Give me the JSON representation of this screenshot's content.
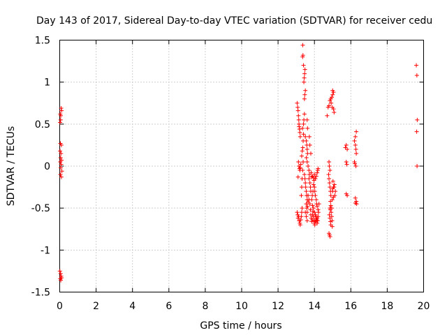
{
  "chart_data": {
    "type": "scatter",
    "title": "Day 143 of 2017, Sidereal Day-to-day VTEC variation (SDTVAR) for receiver cedu",
    "xlabel": "GPS time / hours",
    "ylabel": "SDTVAR / TECUs",
    "xlim": [
      0,
      20
    ],
    "ylim": [
      -1.5,
      1.5
    ],
    "xticks": [
      0,
      2,
      4,
      6,
      8,
      10,
      12,
      14,
      16,
      18,
      20
    ],
    "yticks": [
      -1.5,
      -1,
      -0.5,
      0,
      0.5,
      1,
      1.5
    ],
    "xtick_labels": [
      "0",
      "2",
      "4",
      "6",
      "8",
      "10",
      "12",
      "14",
      "16",
      "18",
      "20"
    ],
    "ytick_labels": [
      "-1.5",
      "-1",
      "-0.5",
      "0",
      "0.5",
      "1",
      "1.5"
    ],
    "grid": true,
    "marker": "+",
    "marker_color": "#ff0000",
    "series": [
      {
        "name": "SDTVAR",
        "points": [
          [
            0.03,
            0.62
          ],
          [
            0.05,
            0.55
          ],
          [
            0.02,
            0.52
          ],
          [
            0.08,
            0.69
          ],
          [
            0.1,
            0.66
          ],
          [
            0.06,
            0.6
          ],
          [
            0.04,
            0.27
          ],
          [
            0.09,
            0.25
          ],
          [
            0.02,
            0.18
          ],
          [
            0.07,
            0.15
          ],
          [
            0.05,
            0.1
          ],
          [
            0.03,
            0.05
          ],
          [
            0.1,
            0.07
          ],
          [
            0.08,
            0.02
          ],
          [
            0.06,
            -0.02
          ],
          [
            0.12,
            -0.06
          ],
          [
            0.04,
            -0.1
          ],
          [
            0.09,
            -0.13
          ],
          [
            0.01,
            -1.25
          ],
          [
            0.05,
            -1.28
          ],
          [
            0.08,
            -1.31
          ],
          [
            0.03,
            -1.34
          ],
          [
            0.06,
            -1.36
          ],
          [
            0.1,
            -1.33
          ],
          [
            13.05,
            0.75
          ],
          [
            13.08,
            0.7
          ],
          [
            13.1,
            0.66
          ],
          [
            13.12,
            0.6
          ],
          [
            13.14,
            0.55
          ],
          [
            13.15,
            0.5
          ],
          [
            13.16,
            0.47
          ],
          [
            13.18,
            0.44
          ],
          [
            13.2,
            0.4
          ],
          [
            13.22,
            0.35
          ],
          [
            13.12,
            0.05
          ],
          [
            13.15,
            0.0
          ],
          [
            13.18,
            -0.03
          ],
          [
            13.2,
            -0.05
          ],
          [
            13.22,
            -0.02
          ],
          [
            13.25,
            0.02
          ],
          [
            13.1,
            -0.13
          ],
          [
            13.05,
            -0.55
          ],
          [
            13.08,
            -0.58
          ],
          [
            13.1,
            -0.62
          ],
          [
            13.13,
            -0.6
          ],
          [
            13.16,
            -0.65
          ],
          [
            13.2,
            -0.68
          ],
          [
            13.22,
            -0.7
          ],
          [
            13.25,
            -0.64
          ],
          [
            13.28,
            -0.6
          ],
          [
            13.3,
            -0.55
          ],
          [
            13.32,
            -0.5
          ],
          [
            13.28,
            -0.35
          ],
          [
            13.3,
            -0.25
          ],
          [
            13.32,
            -0.15
          ],
          [
            13.35,
            -0.05
          ],
          [
            13.38,
            0.05
          ],
          [
            13.3,
            0.12
          ],
          [
            13.33,
            0.18
          ],
          [
            13.36,
            0.22
          ],
          [
            13.38,
            0.3
          ],
          [
            13.4,
            0.38
          ],
          [
            13.35,
            0.45
          ],
          [
            13.4,
            0.5
          ],
          [
            13.42,
            0.55
          ],
          [
            13.45,
            0.62
          ],
          [
            13.45,
            0.8
          ],
          [
            13.47,
            0.85
          ],
          [
            13.5,
            0.9
          ],
          [
            13.42,
            1.0
          ],
          [
            13.44,
            1.05
          ],
          [
            13.46,
            1.1
          ],
          [
            13.48,
            1.15
          ],
          [
            13.4,
            1.2
          ],
          [
            13.35,
            1.3
          ],
          [
            13.37,
            1.32
          ],
          [
            13.36,
            1.44
          ],
          [
            13.45,
            -0.1
          ],
          [
            13.48,
            -0.15
          ],
          [
            13.5,
            -0.2
          ],
          [
            13.52,
            -0.25
          ],
          [
            13.55,
            -0.3
          ],
          [
            13.57,
            -0.35
          ],
          [
            13.6,
            -0.4
          ],
          [
            13.55,
            -0.45
          ],
          [
            13.58,
            -0.5
          ],
          [
            13.6,
            -0.55
          ],
          [
            13.62,
            -0.48
          ],
          [
            13.65,
            -0.43
          ],
          [
            13.5,
            -0.55
          ],
          [
            13.55,
            -0.6
          ],
          [
            13.6,
            -0.65
          ],
          [
            13.5,
            0.35
          ],
          [
            13.55,
            0.3
          ],
          [
            13.58,
            0.25
          ],
          [
            13.6,
            0.2
          ],
          [
            13.62,
            0.15
          ],
          [
            13.56,
            0.1
          ],
          [
            13.6,
            0.05
          ],
          [
            13.65,
            0.0
          ],
          [
            13.7,
            -0.05
          ],
          [
            13.72,
            -0.1
          ],
          [
            13.7,
            -0.15
          ],
          [
            13.75,
            -0.2
          ],
          [
            13.78,
            -0.25
          ],
          [
            13.8,
            -0.3
          ],
          [
            13.65,
            -0.35
          ],
          [
            13.7,
            -0.4
          ],
          [
            13.75,
            -0.45
          ],
          [
            13.78,
            -0.52
          ],
          [
            13.8,
            -0.58
          ],
          [
            13.83,
            -0.62
          ],
          [
            13.85,
            -0.66
          ],
          [
            13.88,
            -0.64
          ],
          [
            13.9,
            -0.58
          ],
          [
            13.92,
            -0.54
          ],
          [
            13.95,
            -0.6
          ],
          [
            13.98,
            -0.65
          ],
          [
            14.0,
            -0.68
          ],
          [
            14.02,
            -0.7
          ],
          [
            14.05,
            -0.66
          ],
          [
            14.08,
            -0.62
          ],
          [
            14.1,
            -0.6
          ],
          [
            14.12,
            -0.64
          ],
          [
            14.15,
            -0.68
          ],
          [
            14.18,
            -0.65
          ],
          [
            14.2,
            -0.6
          ],
          [
            13.6,
            0.55
          ],
          [
            13.62,
            0.45
          ],
          [
            13.72,
            0.35
          ],
          [
            13.75,
            0.25
          ],
          [
            13.8,
            0.15
          ],
          [
            13.82,
            -0.08
          ],
          [
            13.85,
            -0.13
          ],
          [
            13.9,
            -0.12
          ],
          [
            13.95,
            -0.14
          ],
          [
            14.0,
            -0.1
          ],
          [
            14.05,
            -0.15
          ],
          [
            14.1,
            -0.12
          ],
          [
            14.15,
            -0.08
          ],
          [
            14.18,
            -0.05
          ],
          [
            14.2,
            -0.03
          ],
          [
            14.0,
            -0.25
          ],
          [
            14.02,
            -0.3
          ],
          [
            14.05,
            -0.35
          ],
          [
            14.1,
            -0.4
          ],
          [
            14.12,
            -0.45
          ],
          [
            14.15,
            -0.48
          ],
          [
            14.2,
            -0.52
          ],
          [
            13.9,
            -0.47
          ],
          [
            13.95,
            -0.5
          ],
          [
            14.0,
            -0.55
          ],
          [
            14.05,
            -0.58
          ],
          [
            13.85,
            -0.4
          ],
          [
            13.88,
            -0.35
          ],
          [
            13.92,
            -0.3
          ],
          [
            13.95,
            -0.22
          ],
          [
            13.98,
            -0.17
          ],
          [
            14.1,
            -0.65
          ],
          [
            14.15,
            -0.62
          ],
          [
            14.22,
            -0.55
          ],
          [
            14.25,
            -0.45
          ],
          [
            14.7,
            0.6
          ],
          [
            14.75,
            0.7
          ],
          [
            14.8,
            0.72
          ],
          [
            14.85,
            0.78
          ],
          [
            14.9,
            0.8
          ],
          [
            14.95,
            0.82
          ],
          [
            15.0,
            0.85
          ],
          [
            15.05,
            0.88
          ],
          [
            15.0,
            0.9
          ],
          [
            14.92,
            0.75
          ],
          [
            14.98,
            0.7
          ],
          [
            15.05,
            0.68
          ],
          [
            15.08,
            0.64
          ],
          [
            14.8,
            0.05
          ],
          [
            14.82,
            0.0
          ],
          [
            14.85,
            -0.05
          ],
          [
            14.78,
            -0.1
          ],
          [
            14.8,
            -0.15
          ],
          [
            14.83,
            -0.2
          ],
          [
            14.85,
            -0.25
          ],
          [
            14.88,
            -0.3
          ],
          [
            14.9,
            -0.35
          ],
          [
            14.88,
            -0.42
          ],
          [
            14.9,
            -0.47
          ],
          [
            14.85,
            -0.5
          ],
          [
            14.87,
            -0.52
          ],
          [
            14.82,
            -0.58
          ],
          [
            14.85,
            -0.62
          ],
          [
            14.88,
            -0.66
          ],
          [
            14.9,
            -0.7
          ],
          [
            14.8,
            -0.8
          ],
          [
            14.83,
            -0.82
          ],
          [
            14.86,
            -0.84
          ],
          [
            14.92,
            -0.55
          ],
          [
            14.95,
            -0.5
          ],
          [
            14.98,
            -0.4
          ],
          [
            15.0,
            -0.3
          ],
          [
            15.05,
            -0.25
          ],
          [
            15.1,
            -0.22
          ],
          [
            15.15,
            -0.3
          ],
          [
            15.12,
            -0.35
          ],
          [
            15.05,
            -0.37
          ],
          [
            15.0,
            -0.27
          ],
          [
            15.02,
            -0.18
          ],
          [
            15.08,
            -0.25
          ],
          [
            14.95,
            -0.6
          ],
          [
            14.97,
            -0.65
          ],
          [
            14.98,
            -0.72
          ],
          [
            15.7,
            0.22
          ],
          [
            15.75,
            0.25
          ],
          [
            15.8,
            0.2
          ],
          [
            15.75,
            0.05
          ],
          [
            15.78,
            0.02
          ],
          [
            15.8,
            -0.35
          ],
          [
            15.75,
            -0.33
          ],
          [
            16.2,
            0.3
          ],
          [
            16.25,
            0.35
          ],
          [
            16.3,
            0.41
          ],
          [
            16.25,
            0.25
          ],
          [
            16.28,
            0.2
          ],
          [
            16.3,
            0.15
          ],
          [
            16.2,
            0.05
          ],
          [
            16.22,
            0.03
          ],
          [
            16.28,
            0.0
          ],
          [
            16.25,
            -0.38
          ],
          [
            16.3,
            -0.42
          ],
          [
            16.32,
            -0.45
          ],
          [
            16.25,
            -0.44
          ],
          [
            19.6,
            1.2
          ],
          [
            19.63,
            1.08
          ],
          [
            19.65,
            0.55
          ],
          [
            19.62,
            0.41
          ],
          [
            19.64,
            0.0
          ]
        ]
      }
    ]
  }
}
